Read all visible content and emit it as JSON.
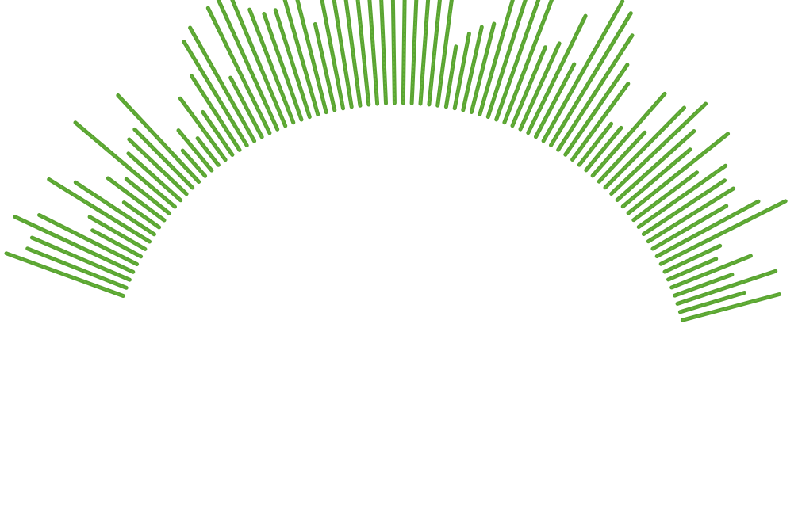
{
  "graphic": {
    "stroke_color": "#5aa332",
    "highlight_color": "#6cbf3e",
    "background": "#ffffff",
    "ray_lengths": [
      0.72,
      0.6,
      0.6,
      0.76,
      0.62,
      0.26,
      0.32,
      0.68,
      0.52,
      0.18,
      0.36,
      0.26,
      0.76,
      0.36,
      0.42,
      0.44,
      0.68,
      0.12,
      0.24,
      0.12,
      0.4,
      0.24,
      0.48,
      0.7,
      0.76,
      0.34,
      0.82,
      0.84,
      0.82,
      0.7,
      0.64,
      0.64,
      0.86,
      0.74,
      0.48,
      0.7,
      0.82,
      0.96,
      0.84,
      0.6,
      0.96,
      0.88,
      0.58,
      0.8,
      0.96,
      0.86,
      0.8,
      0.3,
      0.4,
      0.46,
      0.5,
      0.7,
      0.94,
      0.84,
      0.9,
      0.46,
      0.52,
      0.76,
      0.44,
      0.96,
      0.92,
      0.8,
      0.62,
      0.52,
      0.24,
      0.26,
      0.62,
      0.34,
      0.64,
      0.76,
      0.58,
      0.48,
      0.74,
      0.42,
      0.6,
      0.54,
      0.56,
      0.46,
      0.66,
      0.82,
      0.3,
      0.24,
      0.46,
      0.3,
      0.58,
      0.34,
      0.56
    ]
  }
}
